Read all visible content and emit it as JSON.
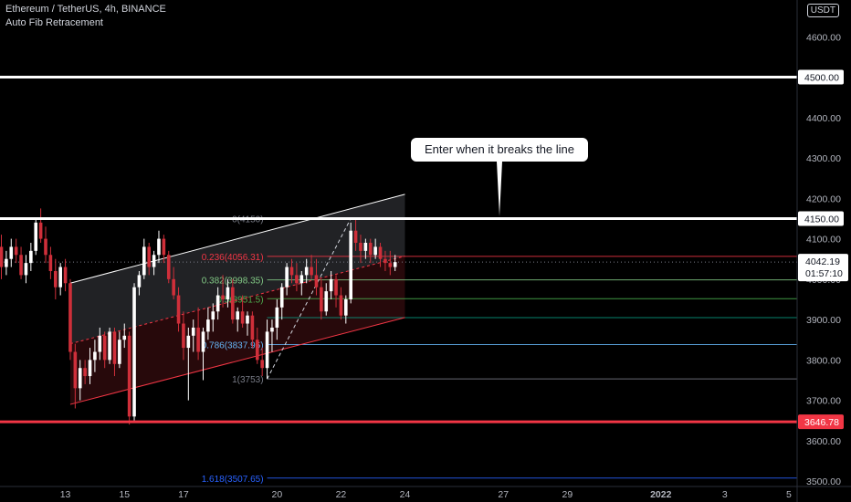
{
  "header": {
    "symbol_line": "Ethereum / TetherUS, 4h, BINANCE",
    "indicator": "Auto Fib Retracement",
    "currency_badge": "USDT"
  },
  "annotation": {
    "text": "Enter when it breaks the line"
  },
  "colors": {
    "background": "#000000",
    "up_candle": "#ffffff",
    "down_candle": "#cf2f3a",
    "support_line": "#f23645",
    "resistance_line": "#ffffff",
    "axis_text": "#b2b5be",
    "fib_red": "#f23645",
    "fib_blue": "#2962ff"
  },
  "chart_data": {
    "type": "candlestick",
    "symbol": "Ethereum / TetherUS",
    "timeframe": "4h",
    "exchange": "BINANCE",
    "ylim": [
      3480,
      4700
    ],
    "yticks": [
      3500,
      3600,
      3700,
      3800,
      3900,
      4000,
      4100,
      4200,
      4300,
      4400,
      4500,
      4600
    ],
    "ytick_labels": [
      "3500.00",
      "3600.00",
      "3700.00",
      "3800.00",
      "3900.00",
      "4000.00",
      "4100.00",
      "4200.00",
      "4300.00",
      "4400.00",
      "4500.00",
      "4600.00"
    ],
    "xticks": [
      {
        "i": 13,
        "label": "13"
      },
      {
        "i": 25,
        "label": "15"
      },
      {
        "i": 37,
        "label": "17"
      },
      {
        "i": 56,
        "label": "20"
      },
      {
        "i": 69,
        "label": "22"
      },
      {
        "i": 82,
        "label": "24"
      },
      {
        "i": 102,
        "label": "27"
      },
      {
        "i": 115,
        "label": "29"
      },
      {
        "i": 134,
        "label": "2022"
      },
      {
        "i": 147,
        "label": "3"
      },
      {
        "i": 160,
        "label": "5"
      }
    ],
    "candles": [
      [
        4080,
        4110,
        4000,
        4030
      ],
      [
        4030,
        4070,
        4010,
        4050
      ],
      [
        4050,
        4100,
        4030,
        4080
      ],
      [
        4080,
        4100,
        4040,
        4060
      ],
      [
        4060,
        4080,
        4000,
        4010
      ],
      [
        4010,
        4060,
        3990,
        4040
      ],
      [
        4040,
        4090,
        4020,
        4070
      ],
      [
        4070,
        4150,
        4060,
        4140
      ],
      [
        4140,
        4175,
        4090,
        4100
      ],
      [
        4100,
        4130,
        4040,
        4060
      ],
      [
        4060,
        4080,
        4000,
        4020
      ],
      [
        4020,
        4050,
        3950,
        3980
      ],
      [
        3980,
        4040,
        3960,
        4030
      ],
      [
        4030,
        4050,
        3970,
        3990
      ],
      [
        3990,
        4000,
        3800,
        3820
      ],
      [
        3820,
        3840,
        3680,
        3730
      ],
      [
        3730,
        3800,
        3700,
        3780
      ],
      [
        3780,
        3800,
        3740,
        3760
      ],
      [
        3760,
        3830,
        3740,
        3800
      ],
      [
        3800,
        3850,
        3770,
        3820
      ],
      [
        3820,
        3880,
        3800,
        3860
      ],
      [
        3860,
        3870,
        3780,
        3800
      ],
      [
        3800,
        3880,
        3790,
        3870
      ],
      [
        3870,
        3880,
        3760,
        3790
      ],
      [
        3790,
        3870,
        3780,
        3850
      ],
      [
        3850,
        3890,
        3830,
        3860
      ],
      [
        3860,
        3870,
        3640,
        3660
      ],
      [
        3660,
        3990,
        3650,
        3980
      ],
      [
        3980,
        4020,
        3960,
        4010
      ],
      [
        4010,
        4100,
        4000,
        4080
      ],
      [
        4080,
        4090,
        4010,
        4030
      ],
      [
        4030,
        4070,
        4010,
        4060
      ],
      [
        4060,
        4120,
        4040,
        4100
      ],
      [
        4100,
        4110,
        4040,
        4060
      ],
      [
        4060,
        4070,
        3990,
        4000
      ],
      [
        4000,
        4030,
        3950,
        3960
      ],
      [
        3960,
        3980,
        3870,
        3890
      ],
      [
        3890,
        3920,
        3800,
        3830
      ],
      [
        3830,
        3880,
        3700,
        3860
      ],
      [
        3860,
        3900,
        3820,
        3880
      ],
      [
        3880,
        3930,
        3800,
        3820
      ],
      [
        3820,
        3880,
        3750,
        3870
      ],
      [
        3870,
        3930,
        3850,
        3900
      ],
      [
        3900,
        3940,
        3870,
        3920
      ],
      [
        3920,
        3980,
        3900,
        3960
      ],
      [
        3960,
        4010,
        3930,
        3950
      ],
      [
        3950,
        4000,
        3930,
        3980
      ],
      [
        3980,
        4000,
        3890,
        3900
      ],
      [
        3900,
        3930,
        3870,
        3920
      ],
      [
        3920,
        3960,
        3880,
        3890
      ],
      [
        3890,
        3920,
        3860,
        3910
      ],
      [
        3910,
        3920,
        3830,
        3850
      ],
      [
        3850,
        3880,
        3790,
        3800
      ],
      [
        3800,
        3830,
        3760,
        3780
      ],
      [
        3780,
        3900,
        3753,
        3870
      ],
      [
        3870,
        3900,
        3820,
        3880
      ],
      [
        3880,
        3950,
        3850,
        3930
      ],
      [
        3930,
        3990,
        3900,
        3980
      ],
      [
        3980,
        4040,
        3960,
        4030
      ],
      [
        4030,
        4050,
        3990,
        4010
      ],
      [
        4010,
        4040,
        3970,
        3990
      ],
      [
        3990,
        4020,
        3960,
        4010
      ],
      [
        4010,
        4050,
        3990,
        4030
      ],
      [
        4030,
        4060,
        4000,
        4010
      ],
      [
        4010,
        4050,
        3960,
        3980
      ],
      [
        3980,
        4000,
        3900,
        3920
      ],
      [
        3920,
        3990,
        3910,
        3970
      ],
      [
        3970,
        4020,
        3950,
        4000
      ],
      [
        4000,
        4010,
        3930,
        3960
      ],
      [
        3960,
        3980,
        3900,
        3910
      ],
      [
        3910,
        3960,
        3890,
        3950
      ],
      [
        3950,
        4140,
        3940,
        4120
      ],
      [
        4120,
        4150,
        4070,
        4090
      ],
      [
        4090,
        4110,
        4040,
        4070
      ],
      [
        4070,
        4100,
        4050,
        4090
      ],
      [
        4090,
        4100,
        4040,
        4060
      ],
      [
        4060,
        4100,
        4050,
        4080
      ],
      [
        4080,
        4090,
        4030,
        4050
      ],
      [
        4050,
        4070,
        4020,
        4040
      ],
      [
        4040,
        4070,
        4010,
        4030
      ],
      [
        4030,
        4060,
        4020,
        4042.19
      ]
    ],
    "horizontal_levels": [
      {
        "value": 4500.0,
        "label": "4500.00",
        "color": "#ffffff"
      },
      {
        "value": 4150.0,
        "label": "4150.00",
        "color": "#ffffff"
      },
      {
        "value": 3646.78,
        "label": "3646.78",
        "color": "#f23645"
      }
    ],
    "last_price": {
      "value": 4042.19,
      "label": "4042.19",
      "countdown": "01:57:10"
    },
    "fib_levels": [
      {
        "ratio": "0",
        "value": 4150,
        "label": "0(4150)",
        "color": "#787b86"
      },
      {
        "ratio": "0.236",
        "value": 4056.31,
        "label": "0.236(4056.31)",
        "color": "#f23645"
      },
      {
        "ratio": "0.382",
        "value": 3998.35,
        "label": "0.382(3998.35)",
        "color": "#81c784"
      },
      {
        "ratio": "0.5",
        "value": 3951.5,
        "label": "0.5(3951.5)",
        "color": "#4caf50"
      },
      {
        "ratio": "0.618",
        "value": 3904.65,
        "label": "",
        "color": "#089981"
      },
      {
        "ratio": "0.786",
        "value": 3837.96,
        "label": "0.786(3837.96)",
        "color": "#64b5f6"
      },
      {
        "ratio": "1",
        "value": 3753,
        "label": "1(3753)",
        "color": "#787b86"
      },
      {
        "ratio": "1.618",
        "value": 3507.65,
        "label": "1.618(3507.65)",
        "color": "#2962ff"
      }
    ],
    "fib_range": {
      "start_index": 54,
      "end_index": 160
    },
    "channel": {
      "upper": {
        "start_index": 14,
        "start_value": 3990,
        "end_index": 82,
        "end_value": 4210
      },
      "lower": {
        "start_index": 14,
        "start_value": 3690,
        "end_index": 82,
        "end_value": 3905
      },
      "mid": {
        "start_index": 14,
        "start_value": 3840,
        "end_index": 82,
        "end_value": 4057
      }
    },
    "trend_line": {
      "start_index": 54,
      "start_value": 3753,
      "end_index": 71,
      "end_value": 4150
    }
  }
}
